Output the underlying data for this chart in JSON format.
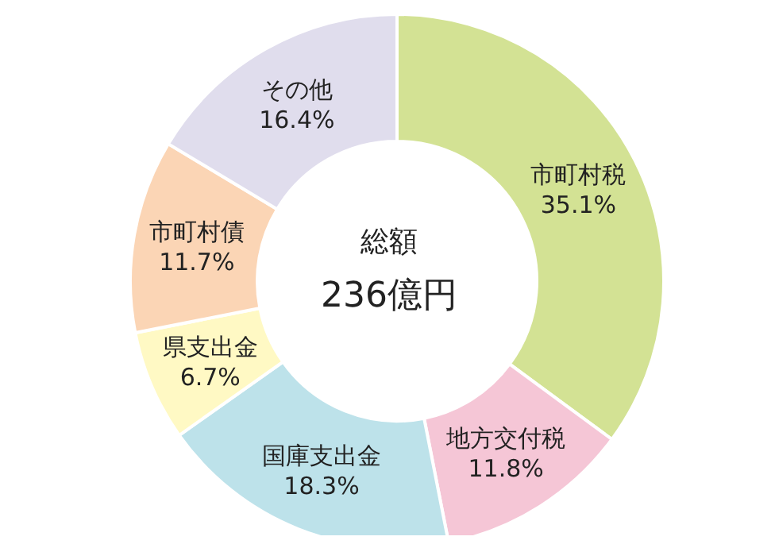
{
  "chart_data": {
    "type": "donut",
    "categories": [
      "市町村税",
      "地方交付税",
      "国庫支出金",
      "県支出金",
      "市町村債",
      "その他"
    ],
    "values": [
      35.1,
      11.8,
      18.3,
      6.7,
      11.7,
      16.4
    ],
    "value_labels": [
      "35.1%",
      "11.8%",
      "18.3%",
      "6.7%",
      "11.7%",
      "16.4%"
    ],
    "colors": [
      "#d3e294",
      "#f5c6d6",
      "#bde2ea",
      "#fff9c4",
      "#fbd5b5",
      "#e0dded"
    ],
    "annotations": [
      "総額",
      "236億円"
    ],
    "legend": false
  }
}
